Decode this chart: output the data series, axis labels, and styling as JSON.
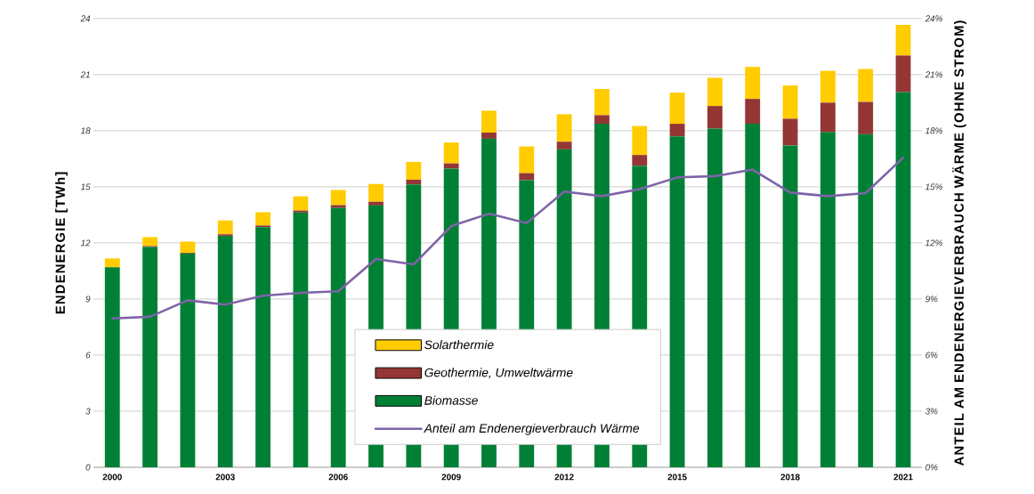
{
  "chart_data": {
    "type": "bar",
    "stacked": true,
    "categories": [
      "2000",
      null,
      null,
      "2003",
      null,
      null,
      "2006",
      null,
      null,
      "2009",
      null,
      null,
      "2012",
      null,
      null,
      "2015",
      null,
      null,
      "2018",
      null,
      null,
      "2021"
    ],
    "series": [
      {
        "name": "Biomasse",
        "color": "#008035",
        "values": [
          10.7,
          11.78,
          11.43,
          12.38,
          12.84,
          13.62,
          13.87,
          14.0,
          15.13,
          15.97,
          17.57,
          15.35,
          17.0,
          18.37,
          16.13,
          17.7,
          18.11,
          18.37,
          17.21,
          17.93,
          17.81,
          20.06
        ]
      },
      {
        "name": "Geothermie, Umweltwärme",
        "color": "#943634",
        "values": [
          0.0,
          0.05,
          0.04,
          0.08,
          0.09,
          0.11,
          0.15,
          0.2,
          0.25,
          0.28,
          0.33,
          0.38,
          0.41,
          0.46,
          0.57,
          0.67,
          1.21,
          1.33,
          1.43,
          1.57,
          1.73,
          1.96
        ]
      },
      {
        "name": "Solarthermie",
        "color": "#ffcc00",
        "values": [
          0.47,
          0.48,
          0.6,
          0.74,
          0.71,
          0.76,
          0.81,
          0.95,
          0.95,
          1.12,
          1.17,
          1.43,
          1.47,
          1.4,
          1.55,
          1.67,
          1.51,
          1.71,
          1.78,
          1.7,
          1.76,
          1.64
        ]
      },
      {
        "name": "Anteil am Endenergieverbrauch Wärme",
        "color": "#7f63a8",
        "type": "line",
        "axis": "y2",
        "values": [
          7.96,
          8.05,
          8.93,
          8.7,
          9.17,
          9.33,
          9.41,
          11.14,
          10.85,
          12.9,
          13.56,
          13.06,
          14.74,
          14.5,
          14.87,
          15.5,
          15.57,
          15.92,
          14.69,
          14.5,
          14.66,
          16.56
        ]
      }
    ],
    "ylabel": "ENDENERGIE [TWh]",
    "y2label": "ANTEIL AM ENDENERGIEVERBRAUCH WÄRME (OHNE STROM)",
    "ylim": [
      0,
      24
    ],
    "yticks": [
      0,
      3,
      6,
      9,
      12,
      15,
      18,
      21,
      24
    ],
    "y2lim": [
      0,
      24
    ],
    "y2ticks": [
      {
        "value": 0,
        "label": "0%"
      },
      {
        "value": 3,
        "label": "3%"
      },
      {
        "value": 6,
        "label": "6%"
      },
      {
        "value": 9,
        "label": "9%"
      },
      {
        "value": 12,
        "label": "12%"
      },
      {
        "value": 15,
        "label": "15%"
      },
      {
        "value": 18,
        "label": "18%"
      },
      {
        "value": 21,
        "label": "21%"
      },
      {
        "value": 24,
        "label": "24%"
      }
    ],
    "grid": "y",
    "legend": "bottom"
  }
}
